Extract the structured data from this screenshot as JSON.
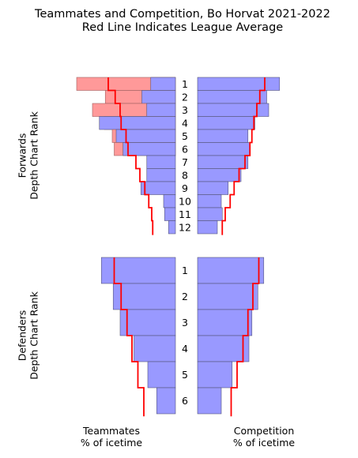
{
  "colors": {
    "bar_fill": "#9999ff",
    "bar_edge": "#55557a",
    "diff_fill": "#ff9999",
    "diff_edge": "#a06060",
    "avg_line": "#ff0000"
  },
  "chart_data": {
    "type": "bar",
    "title": "Teammates and Competition, Bo Horvat 2021-2022",
    "subtitle": "Red Line Indicates League Average",
    "xlabel_left": "Teammates\n% of icetime",
    "xlabel_right": "Competition\n% of icetime",
    "legend": "none",
    "grid": false,
    "panels": [
      {
        "name": "forwards",
        "ylabel": "Forwards\nDepth Chart Rank",
        "categories": [
          "1",
          "2",
          "3",
          "4",
          "5",
          "6",
          "7",
          "8",
          "9",
          "10",
          "11",
          "12"
        ],
        "teammates_pct": [
          25,
          34,
          29,
          77,
          60,
          53,
          29,
          29,
          35,
          12,
          11,
          7
        ],
        "teammates_red_pct": [
          100,
          71,
          84,
          72,
          64,
          62,
          0,
          0,
          0,
          0,
          0,
          0
        ],
        "competition_pct": [
          83,
          70,
          72,
          58,
          51,
          53,
          51,
          44,
          31,
          24,
          25,
          20
        ],
        "league_avg_teammates": [
          68,
          61,
          56,
          55,
          50,
          48,
          40,
          36,
          31,
          27,
          24,
          23
        ],
        "league_avg_competition": [
          68,
          63,
          60,
          57,
          55,
          53,
          48,
          42,
          37,
          33,
          28,
          25
        ],
        "xlim": [
          0,
          100
        ]
      },
      {
        "name": "defenders",
        "ylabel": "Defenders\nDepth Chart Rank",
        "categories": [
          "1",
          "2",
          "3",
          "4",
          "5",
          "6"
        ],
        "teammates_pct": [
          75,
          63,
          56,
          42,
          28,
          19
        ],
        "competition_pct": [
          67,
          61,
          55,
          52,
          35,
          24
        ],
        "league_avg_teammates": [
          62,
          55,
          49,
          44,
          38,
          32
        ],
        "league_avg_competition": [
          62,
          56,
          51,
          46,
          40,
          34
        ],
        "xlim": [
          0,
          100
        ]
      }
    ]
  }
}
